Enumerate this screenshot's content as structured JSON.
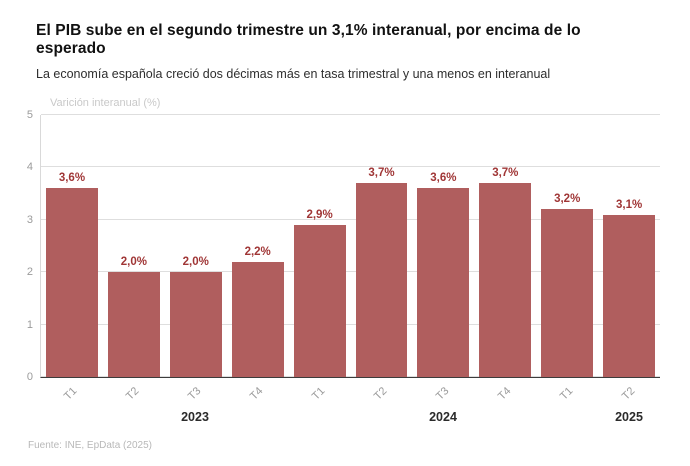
{
  "header": {
    "title": "El PIB sube en el segundo trimestre un 3,1% interanual, por encima de lo esperado",
    "subtitle": "La economía española creció dos décimas más en tasa trimestral y una menos en interanual"
  },
  "chart_data": {
    "type": "bar",
    "axis_label": "Varición interanual (%)",
    "categories": [
      "T1",
      "T2",
      "T3",
      "T4",
      "T1",
      "T2",
      "T3",
      "T4",
      "T1",
      "T2"
    ],
    "values": [
      3.6,
      2.0,
      2.0,
      2.2,
      2.9,
      3.7,
      3.6,
      3.7,
      3.2,
      3.1
    ],
    "value_labels": [
      "3,6%",
      "2,0%",
      "2,0%",
      "2,2%",
      "2,9%",
      "3,7%",
      "3,6%",
      "3,7%",
      "3,2%",
      "3,1%"
    ],
    "ylim": [
      0,
      5
    ],
    "yticks": [
      5,
      4,
      3,
      2,
      1,
      0
    ],
    "grid": true,
    "legend": "none",
    "bar_color": "#b05e5e",
    "label_color": "#a03636",
    "years": [
      {
        "label": "2023",
        "bar_index": 2
      },
      {
        "label": "2024",
        "bar_index": 6
      },
      {
        "label": "2025",
        "bar_index": 9
      }
    ]
  },
  "footer": {
    "source": "Fuente: INE, EpData (2025)"
  }
}
